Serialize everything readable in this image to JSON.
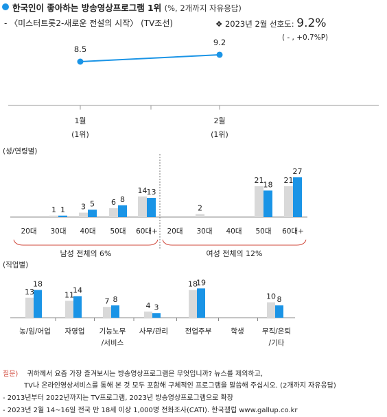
{
  "header": {
    "title": "한국인이 좋아하는 방송영상프로그램 1위",
    "title_note": "(%, 2개까지 자유응답)",
    "subtitle": "- 〈미스터트롯2-새로운 전설의 시작〉 (TV조선)",
    "pref_label": "❖  2023년  2월  선호도:",
    "pref_value": "9.2%",
    "pref_change": "( - , +0.7%P)"
  },
  "colors": {
    "male": "#d9d9d9",
    "female": "#1a94e6",
    "trend": "#1a94e6",
    "accent_red": "#d0473a"
  },
  "chart_data": [
    {
      "type": "line",
      "x": [
        "1월",
        "2월"
      ],
      "x_sub": [
        "(1위)",
        "(1위)"
      ],
      "series": [
        {
          "values": [
            8.5,
            9.2
          ],
          "labels": [
            "8.5",
            "9.2"
          ]
        }
      ]
    },
    {
      "type": "bar",
      "section_label": "(성/연령별)",
      "groups": [
        {
          "label": "남성  전체의  6%",
          "categories": [
            "20대",
            "30대",
            "40대",
            "50대",
            "60대+"
          ],
          "gray": [
            null,
            1,
            3,
            6,
            14
          ],
          "blue": [
            null,
            1,
            5,
            8,
            13
          ]
        },
        {
          "label": "여성  전체의  12%",
          "categories": [
            "20대",
            "30대",
            "40대",
            "50대",
            "60대+"
          ],
          "gray": [
            null,
            2,
            null,
            21,
            21
          ],
          "blue": [
            null,
            null,
            null,
            18,
            27
          ]
        }
      ]
    },
    {
      "type": "bar",
      "section_label": "(직업별)",
      "categories": [
        "농/임/어업",
        "자영업",
        "기능노무 /서비스",
        "사무/관리",
        "전업주부",
        "학생",
        "무직/은퇴 /기타"
      ],
      "gray": [
        13,
        11,
        7,
        4,
        18,
        null,
        10
      ],
      "blue": [
        18,
        14,
        8,
        3,
        19,
        null,
        8
      ]
    }
  ],
  "footer": {
    "q_label": "질문)",
    "q_line1": "귀하께서 요즘 가장 즐겨보시는 방송영상프로그램은 무엇입니까? 뉴스를 제외하고,",
    "q_line2": "TV나 온라인영상서비스를 통해 본 것 모두 포함해 구체적인 프로그램을 말씀해 주십시오. (2개까지 자유응답)",
    "note1": "- 2013년부터 2022년까지는 TV프로그램, 2023년 방송영상프로그램으로 확장",
    "note2": "- 2023년 2월 14~16일 전국 만 18세 이상 1,000명 전화조사(CATI). 한국갤럽 www.gallup.co.kr"
  }
}
